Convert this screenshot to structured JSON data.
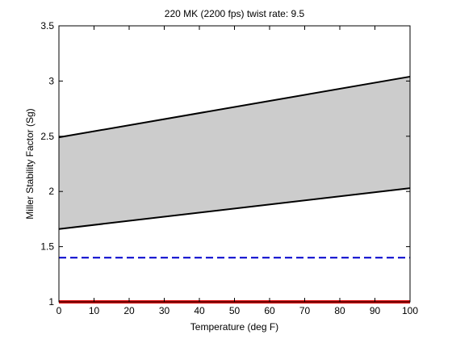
{
  "chart_data": {
    "type": "area",
    "title": "220 MK (2200 fps) twist rate: 9.5",
    "xlabel": "Temperature (deg F)",
    "ylabel": "Miller Stability Factor (Sg)",
    "xlim": [
      0,
      100
    ],
    "ylim": [
      1,
      3.5
    ],
    "xticks": [
      "0",
      "10",
      "20",
      "30",
      "40",
      "50",
      "60",
      "70",
      "80",
      "90",
      "100"
    ],
    "yticks": [
      "1",
      "1.5",
      "2",
      "2.5",
      "3",
      "3.5"
    ],
    "grid": false,
    "legend": "none",
    "band": {
      "fill_color": "#cccccc",
      "x": [
        0,
        100
      ],
      "upper": [
        2.49,
        3.04
      ],
      "lower": [
        1.66,
        2.03
      ]
    },
    "series": [
      {
        "style": "solid",
        "color": "#000000",
        "x": [
          0,
          100
        ],
        "y": [
          2.49,
          3.04
        ]
      },
      {
        "style": "solid",
        "color": "#000000",
        "x": [
          0,
          100
        ],
        "y": [
          1.66,
          2.03
        ]
      },
      {
        "style": "dashed",
        "color": "#0000cc",
        "x": [
          0,
          100
        ],
        "y": [
          1.4,
          1.4
        ]
      },
      {
        "style": "solid",
        "color": "#dd0000",
        "x": [
          0,
          100
        ],
        "y": [
          1.0,
          1.0
        ]
      }
    ]
  }
}
